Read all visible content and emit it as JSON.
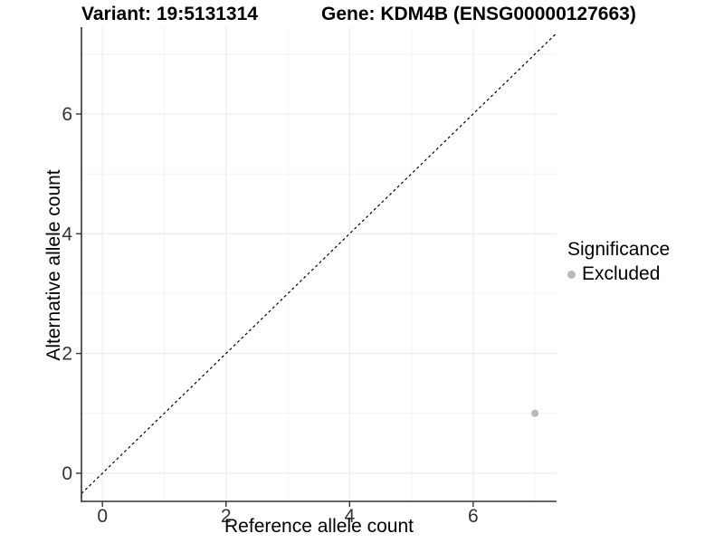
{
  "titles": {
    "variant": "Variant: 19:5131314",
    "gene": "Gene: KDM4B (ENSG00000127663)"
  },
  "axis": {
    "x_label": "Reference allele count",
    "y_label": "Alternative allele count"
  },
  "legend": {
    "title": "Significance",
    "items": [
      {
        "label": "Excluded",
        "color": "#b9b9b9"
      }
    ]
  },
  "colors": {
    "background": "#ffffff",
    "grid_major": "#e9e9e9",
    "grid_minor": "#f4f4f4",
    "axis_line": "#333333",
    "tick_text": "#333333",
    "identity_line": "#000000",
    "point": "#b9b9b9"
  },
  "chart_data": {
    "type": "scatter",
    "title": "Variant: 19:5131314    Gene: KDM4B (ENSG00000127663)",
    "xlabel": "Reference allele count",
    "ylabel": "Alternative allele count",
    "xlim": [
      -0.34,
      7.35
    ],
    "ylim": [
      -0.47,
      7.45
    ],
    "x_ticks": [
      0,
      2,
      4,
      6
    ],
    "y_ticks": [
      0,
      2,
      4,
      6
    ],
    "minor_ticks": [
      1,
      3,
      5,
      7
    ],
    "grid": true,
    "legend_position": "right",
    "series": [
      {
        "name": "Excluded",
        "color": "#b9b9b9",
        "points": [
          [
            7,
            1
          ]
        ]
      }
    ],
    "reference_line": {
      "type": "identity",
      "slope": 1,
      "intercept": 0,
      "style": "dashed",
      "color": "#000000"
    }
  }
}
